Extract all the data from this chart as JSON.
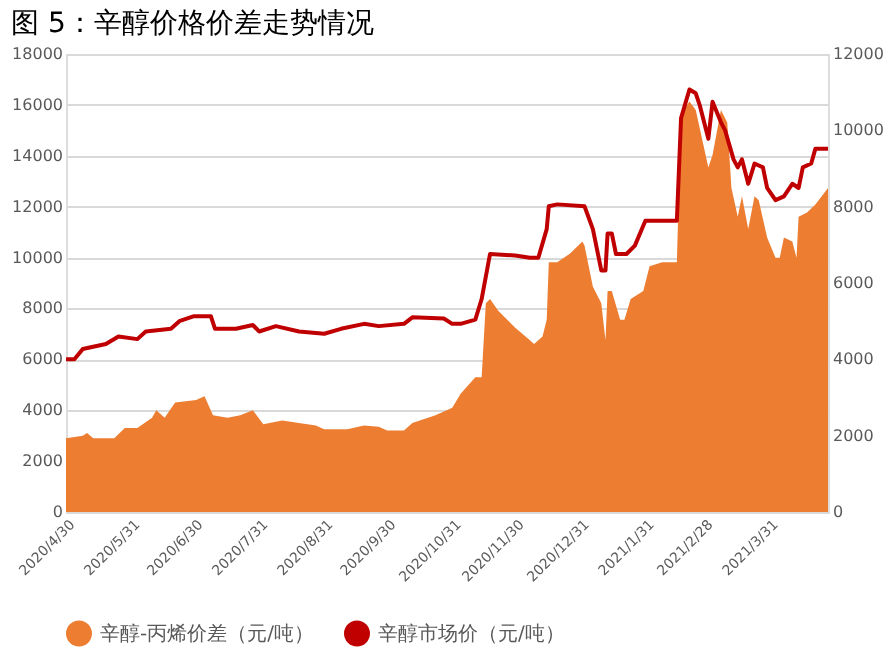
{
  "chart_data": {
    "type": "area",
    "title": "图 5：辛醇价格价差走势情况",
    "xlim": [
      "2020-04-30",
      "2021-04-28"
    ],
    "xticks": [
      {
        "value": "2020-04-30",
        "label": "2020/4/30"
      },
      {
        "value": "2020-05-31",
        "label": "2020/5/31"
      },
      {
        "value": "2020-06-30",
        "label": "2020/6/30"
      },
      {
        "value": "2020-07-31",
        "label": "2020/7/31"
      },
      {
        "value": "2020-08-31",
        "label": "2020/8/31"
      },
      {
        "value": "2020-09-30",
        "label": "2020/9/30"
      },
      {
        "value": "2020-10-31",
        "label": "2020/10/31"
      },
      {
        "value": "2020-11-30",
        "label": "2020/11/30"
      },
      {
        "value": "2020-12-31",
        "label": "2020/12/31"
      },
      {
        "value": "2021-01-31",
        "label": "2021/1/31"
      },
      {
        "value": "2021-02-28",
        "label": "2021/2/28"
      },
      {
        "value": "2021-03-31",
        "label": "2021/3/31"
      }
    ],
    "ylim": [
      0,
      18000
    ],
    "yticks": [
      0,
      2000,
      4000,
      6000,
      8000,
      10000,
      12000,
      14000,
      16000,
      18000
    ],
    "y2lim": [
      0,
      12000
    ],
    "y2ticks": [
      0,
      2000,
      4000,
      6000,
      8000,
      10000,
      12000
    ],
    "grid": "y",
    "legend": "bottom",
    "series": [
      {
        "name": "辛醇-丙烯价差（元/吨）",
        "color": "#ed7d31",
        "x": [
          "2020-04-30",
          "2020-05-08",
          "2020-05-10",
          "2020-05-13",
          "2020-05-23",
          "2020-05-28",
          "2020-06-03",
          "2020-06-10",
          "2020-06-12",
          "2020-06-16",
          "2020-06-21",
          "2020-07-01",
          "2020-07-05",
          "2020-07-09",
          "2020-07-16",
          "2020-07-22",
          "2020-07-28",
          "2020-08-02",
          "2020-08-11",
          "2020-08-27",
          "2020-08-31",
          "2020-09-11",
          "2020-09-19",
          "2020-09-26",
          "2020-09-30",
          "2020-10-08",
          "2020-10-12",
          "2020-10-23",
          "2020-10-31",
          "2020-11-04",
          "2020-11-11",
          "2020-11-14",
          "2020-11-16",
          "2020-11-18",
          "2020-11-22",
          "2020-11-30",
          "2020-12-07",
          "2020-12-09",
          "2020-12-13",
          "2020-12-15",
          "2020-12-16",
          "2020-12-20",
          "2020-12-26",
          "2021-01-01",
          "2021-01-02",
          "2021-01-06",
          "2021-01-10",
          "2021-01-12",
          "2021-01-13",
          "2021-01-15",
          "2021-01-19",
          "2021-01-21",
          "2021-01-24",
          "2021-01-30",
          "2021-02-02",
          "2021-02-08",
          "2021-02-15",
          "2021-02-17",
          "2021-02-21",
          "2021-02-24",
          "2021-03-02",
          "2021-03-04",
          "2021-03-08",
          "2021-03-11",
          "2021-03-13",
          "2021-03-16",
          "2021-03-18",
          "2021-03-21",
          "2021-03-24",
          "2021-03-26",
          "2021-03-30",
          "2021-04-03",
          "2021-04-05",
          "2021-04-07",
          "2021-04-11",
          "2021-04-13",
          "2021-04-14",
          "2021-04-18",
          "2021-04-22",
          "2021-04-28"
        ],
        "values": [
          2900,
          3000,
          3100,
          2900,
          2900,
          3300,
          3300,
          3700,
          4000,
          3700,
          4300,
          4400,
          4550,
          3800,
          3700,
          3800,
          4000,
          3450,
          3600,
          3400,
          3250,
          3250,
          3400,
          3350,
          3200,
          3200,
          3500,
          3800,
          4100,
          4650,
          5300,
          5300,
          8200,
          8370,
          7900,
          7240,
          6750,
          6600,
          6900,
          7560,
          9820,
          9820,
          10150,
          10630,
          10470,
          8850,
          8200,
          6750,
          8690,
          8690,
          7560,
          7560,
          8370,
          8690,
          9660,
          9820,
          9820,
          15640,
          16130,
          15800,
          13540,
          14030,
          15800,
          15310,
          12730,
          11600,
          12410,
          11120,
          12410,
          12250,
          10790,
          9990,
          9990,
          10790,
          10630,
          9990,
          11600,
          11770,
          12090,
          12730
        ]
      },
      {
        "name": "辛醇市场价（元/吨）",
        "type": "line",
        "axis": "y2",
        "color": "#c00000",
        "x": [
          "2020-04-30",
          "2020-05-04",
          "2020-05-08",
          "2020-05-19",
          "2020-05-25",
          "2020-06-03",
          "2020-06-07",
          "2020-06-19",
          "2020-06-23",
          "2020-06-30",
          "2020-07-08",
          "2020-07-10",
          "2020-07-20",
          "2020-07-28",
          "2020-07-31",
          "2020-08-08",
          "2020-08-19",
          "2020-08-31",
          "2020-09-08",
          "2020-09-19",
          "2020-09-26",
          "2020-10-08",
          "2020-10-12",
          "2020-10-27",
          "2020-10-31",
          "2020-11-04",
          "2020-11-11",
          "2020-11-14",
          "2020-11-18",
          "2020-11-30",
          "2020-12-07",
          "2020-12-11",
          "2020-12-15",
          "2020-12-16",
          "2020-12-20",
          "2021-01-02",
          "2021-01-06",
          "2021-01-10",
          "2021-01-12",
          "2021-01-13",
          "2021-01-15",
          "2021-01-17",
          "2021-01-22",
          "2021-01-26",
          "2021-01-31",
          "2021-02-15",
          "2021-02-17",
          "2021-02-21",
          "2021-02-24",
          "2021-02-26",
          "2021-03-02",
          "2021-03-04",
          "2021-03-08",
          "2021-03-10",
          "2021-03-14",
          "2021-03-16",
          "2021-03-18",
          "2021-03-21",
          "2021-03-24",
          "2021-03-28",
          "2021-03-30",
          "2021-04-03",
          "2021-04-07",
          "2021-04-11",
          "2021-04-14",
          "2021-04-16",
          "2021-04-20",
          "2021-04-22",
          "2021-04-28"
        ],
        "values": [
          4000,
          4000,
          4270,
          4400,
          4600,
          4530,
          4730,
          4800,
          5000,
          5130,
          5130,
          4800,
          4800,
          4900,
          4730,
          4870,
          4730,
          4670,
          4800,
          4930,
          4870,
          4930,
          5100,
          5070,
          4930,
          4930,
          5040,
          5580,
          6760,
          6720,
          6660,
          6660,
          7410,
          8010,
          8060,
          8010,
          7410,
          6330,
          6330,
          7300,
          7300,
          6760,
          6760,
          6980,
          7630,
          7630,
          10320,
          11070,
          10970,
          10640,
          9780,
          10750,
          10210,
          10000,
          9240,
          9030,
          9240,
          8600,
          9130,
          9030,
          8490,
          8170,
          8270,
          8600,
          8490,
          9030,
          9130,
          9520,
          9520
        ]
      }
    ]
  }
}
